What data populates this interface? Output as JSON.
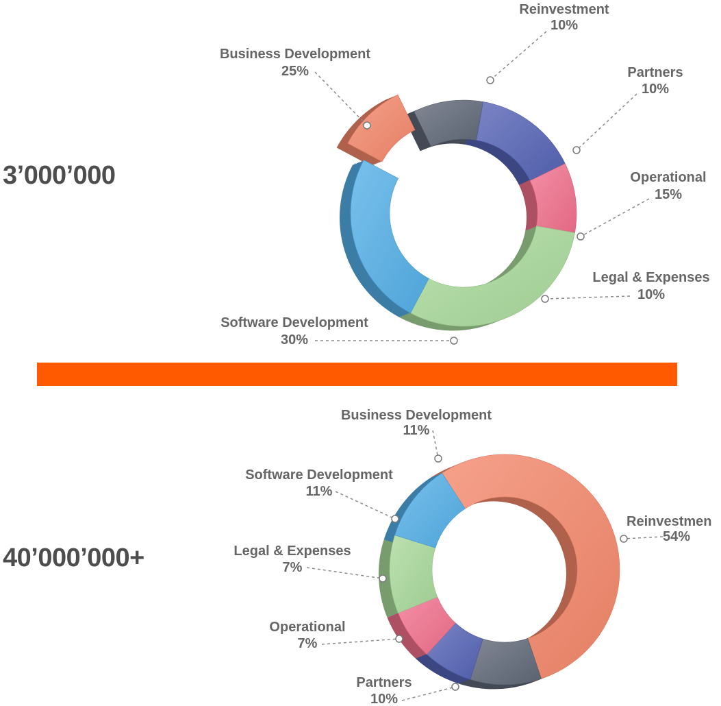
{
  "divider_color": "#ff5a00",
  "chart_data": [
    {
      "type": "pie",
      "variant": "3d-donut",
      "title": "3’000’000",
      "categories": [
        "Reinvestment",
        "Partners",
        "Operational",
        "Legal & Expenses",
        "Software Development",
        "Business Development"
      ],
      "values": [
        10,
        10,
        15,
        10,
        30,
        25
      ],
      "value_labels": [
        "10%",
        "10%",
        "15%",
        "10%",
        "30%",
        "25%"
      ],
      "colors": [
        "#f3876a",
        "#5f6776",
        "#5463b4",
        "#f06f8b",
        "#a8d89a",
        "#53aee6"
      ],
      "exploded": [
        "Reinvestment"
      ]
    },
    {
      "type": "pie",
      "variant": "3d-donut",
      "title": "40’000’000+",
      "categories": [
        "Reinvestmen",
        "Partners",
        "Operational",
        "Legal & Expenses",
        "Software Development",
        "Business Development"
      ],
      "values": [
        54,
        10,
        7,
        7,
        11,
        11
      ],
      "value_labels": [
        "54%",
        "10%",
        "7%",
        "7%",
        "11%",
        "11%"
      ],
      "colors": [
        "#f3876a",
        "#5f6776",
        "#5463b4",
        "#f06f8b",
        "#a8d89a",
        "#53aee6"
      ],
      "exploded": []
    }
  ]
}
